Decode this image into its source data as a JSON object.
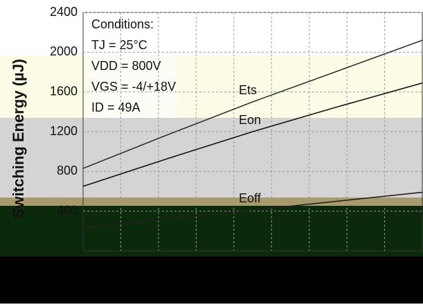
{
  "chart_data": {
    "type": "line",
    "y_label": "Switching Energy (µJ)",
    "conditions": [
      "Conditions:",
      "TJ = 25°C",
      "VDD = 800V",
      "VGS = -4/+18V",
      "ID = 49A"
    ],
    "categories": [
      null,
      null,
      null,
      null,
      null
    ],
    "series": [
      {
        "name": "Ets",
        "color": "#333333",
        "values": [
          830,
          1170,
          1500,
          1810,
          2120
        ]
      },
      {
        "name": "Eon",
        "color": "#111111",
        "values": [
          650,
          930,
          1200,
          1450,
          1690
        ]
      },
      {
        "name": "Eoff",
        "color": "#222222",
        "values": [
          230,
          320,
          410,
          500,
          590
        ]
      }
    ],
    "ylim": [
      0,
      2400
    ],
    "yticks": [
      400,
      800,
      1200,
      1600,
      2000,
      2400
    ],
    "grid": true
  }
}
